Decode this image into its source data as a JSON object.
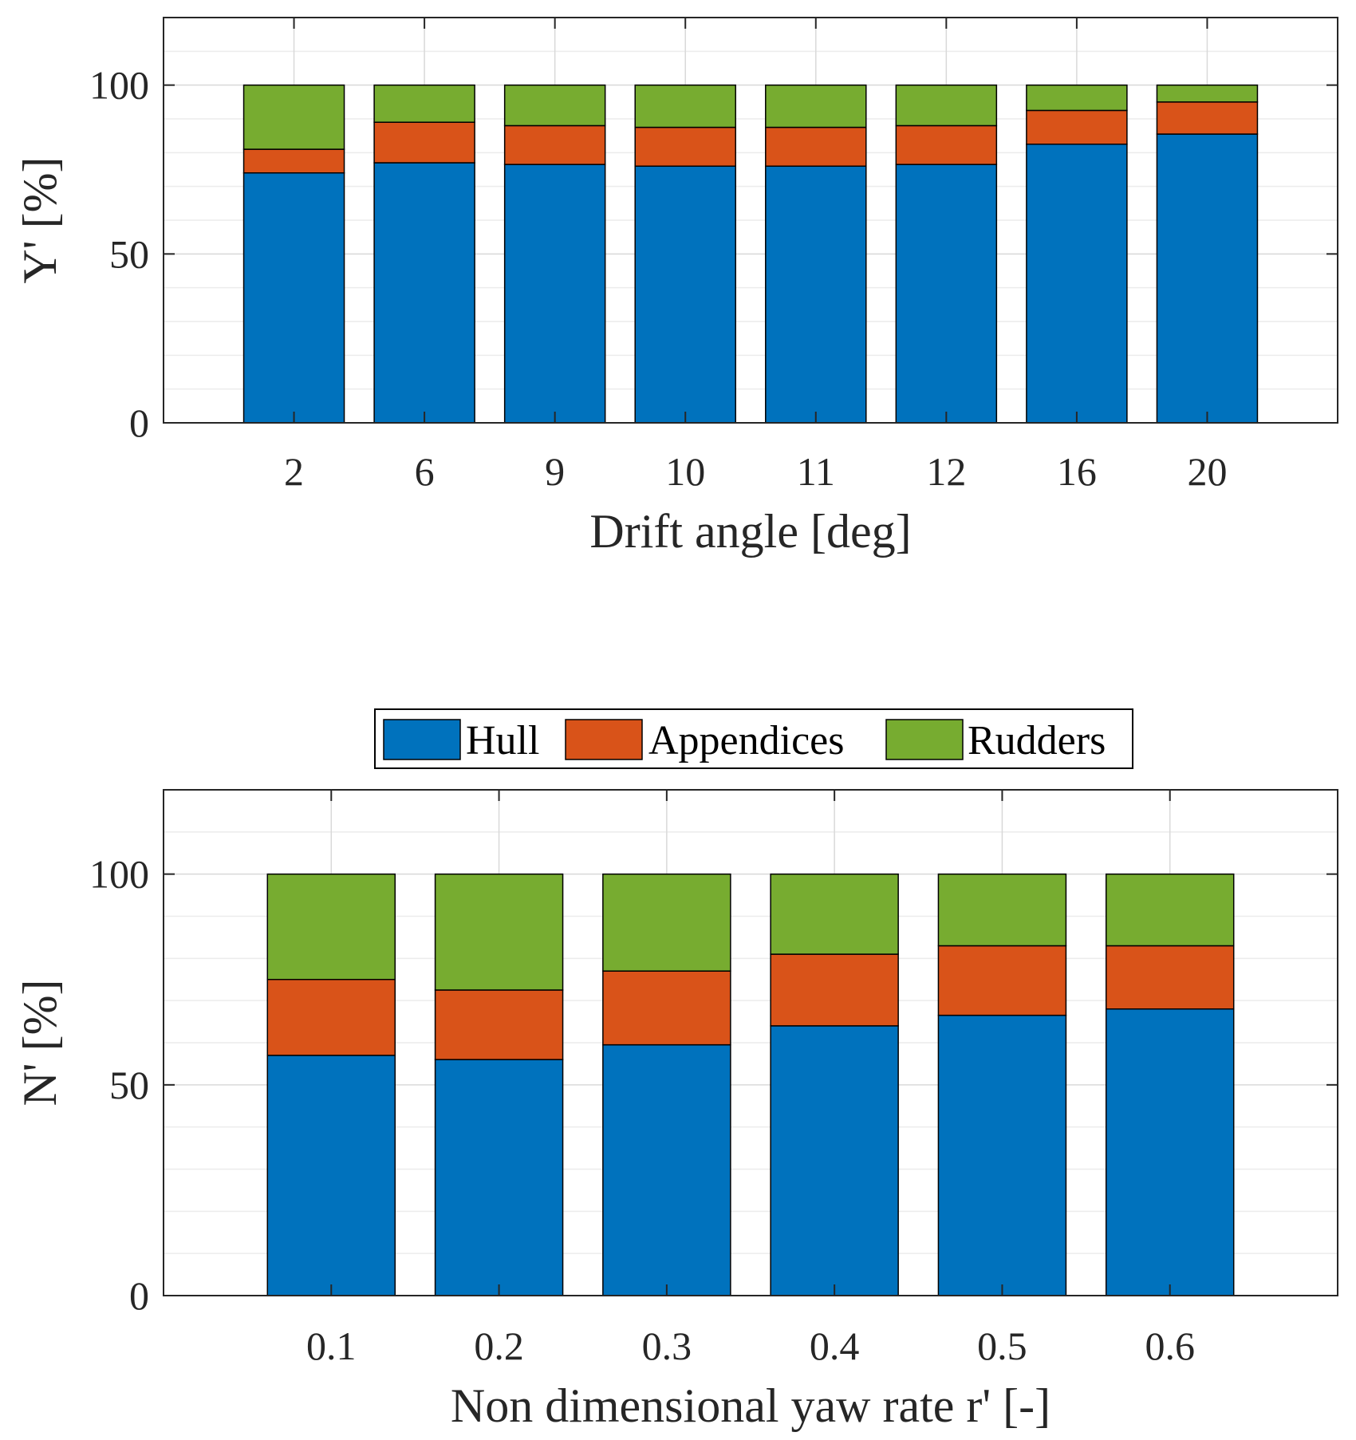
{
  "colors": {
    "hull": "#0072BD",
    "appendices": "#D95319",
    "rudders": "#77AC30",
    "grid_major": "#d9d9d9",
    "grid_minor": "#ececec",
    "axis": "#262626",
    "bar_edge": "#000000"
  },
  "legend": {
    "placement": "above-bottom-panel",
    "entries": [
      "Hull",
      "Appendices",
      "Rudders"
    ]
  },
  "chart_data": [
    {
      "type": "bar",
      "stacked": true,
      "title": "",
      "xlabel": "Drift angle [deg]",
      "ylabel": "Y' [%]",
      "ylim": [
        0,
        120
      ],
      "yticks": [
        "0",
        "50",
        "100"
      ],
      "categories": [
        "2",
        "6",
        "9",
        "10",
        "11",
        "12",
        "16",
        "20"
      ],
      "series": [
        {
          "name": "Hull",
          "color_key": "hull",
          "values": [
            74,
            77,
            76.5,
            76,
            76,
            76.5,
            82.5,
            85.5
          ]
        },
        {
          "name": "Appendices",
          "color_key": "appendices",
          "values": [
            7,
            12,
            11.5,
            11.5,
            11.5,
            11.5,
            10,
            9.5
          ]
        },
        {
          "name": "Rudders",
          "color_key": "rudders",
          "values": [
            19,
            11,
            12,
            12.5,
            12.5,
            12,
            7.5,
            5
          ]
        }
      ],
      "grid": true
    },
    {
      "type": "bar",
      "stacked": true,
      "title": "",
      "xlabel": "Non dimensional yaw rate r' [-]",
      "ylabel": "N' [%]",
      "ylim": [
        0,
        120
      ],
      "yticks": [
        "0",
        "50",
        "100"
      ],
      "categories": [
        "0.1",
        "0.2",
        "0.3",
        "0.4",
        "0.5",
        "0.6"
      ],
      "series": [
        {
          "name": "Hull",
          "color_key": "hull",
          "values": [
            57,
            56,
            59.5,
            64,
            66.5,
            68
          ]
        },
        {
          "name": "Appendices",
          "color_key": "appendices",
          "values": [
            18,
            16.5,
            17.5,
            17,
            16.5,
            15
          ]
        },
        {
          "name": "Rudders",
          "color_key": "rudders",
          "values": [
            25,
            27.5,
            23,
            19,
            17,
            17
          ]
        }
      ],
      "grid": true
    }
  ]
}
